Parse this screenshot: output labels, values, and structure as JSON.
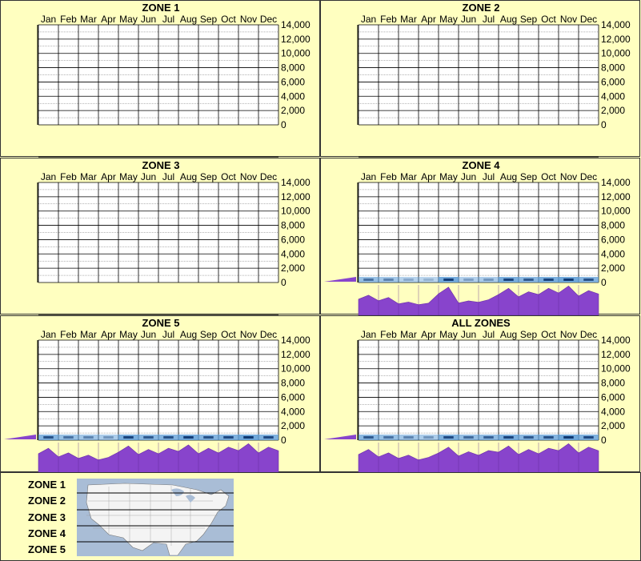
{
  "months": [
    "Jan",
    "Feb",
    "Mar",
    "Apr",
    "May",
    "Jun",
    "Jul",
    "Aug",
    "Sep",
    "Oct",
    "Nov",
    "Dec"
  ],
  "y_ticks": [
    "14,000",
    "12,000",
    "10,000",
    "8,000",
    "6,000",
    "4,000",
    "2,000",
    "0"
  ],
  "colors": {
    "background": "#ffffc0",
    "profile": "#8844cc",
    "map_water": "#a9bdd6"
  },
  "chart_data": [
    {
      "type": "heatmap",
      "title": "ZONE 1",
      "categories": [
        "Jan",
        "Feb",
        "Mar",
        "Apr",
        "May",
        "Jun",
        "Jul",
        "Aug",
        "Sep",
        "Oct",
        "Nov",
        "Dec"
      ],
      "ylim": [
        0,
        14000
      ],
      "has_data": false
    },
    {
      "type": "heatmap",
      "title": "ZONE 2",
      "categories": [
        "Jan",
        "Feb",
        "Mar",
        "Apr",
        "May",
        "Jun",
        "Jul",
        "Aug",
        "Sep",
        "Oct",
        "Nov",
        "Dec"
      ],
      "ylim": [
        0,
        14000
      ],
      "has_data": false
    },
    {
      "type": "heatmap",
      "title": "ZONE 3",
      "categories": [
        "Jan",
        "Feb",
        "Mar",
        "Apr",
        "May",
        "Jun",
        "Jul",
        "Aug",
        "Sep",
        "Oct",
        "Nov",
        "Dec"
      ],
      "ylim": [
        0,
        14000
      ],
      "has_data": false
    },
    {
      "type": "heatmap",
      "title": "ZONE 4",
      "categories": [
        "Jan",
        "Feb",
        "Mar",
        "Apr",
        "May",
        "Jun",
        "Jul",
        "Aug",
        "Sep",
        "Oct",
        "Nov",
        "Dec"
      ],
      "ylim": [
        0,
        14000
      ],
      "has_data": true,
      "monthly_relative": [
        0.55,
        0.45,
        0.25,
        0.2,
        0.9,
        0.3,
        0.35,
        0.85,
        0.7,
        0.85,
        0.95,
        0.75
      ]
    },
    {
      "type": "heatmap",
      "title": "ZONE 5",
      "categories": [
        "Jan",
        "Feb",
        "Mar",
        "Apr",
        "May",
        "Jun",
        "Jul",
        "Aug",
        "Sep",
        "Oct",
        "Nov",
        "Dec"
      ],
      "ylim": [
        0,
        14000
      ],
      "has_data": true,
      "monthly_relative": [
        0.75,
        0.55,
        0.45,
        0.35,
        0.85,
        0.7,
        0.75,
        0.9,
        0.75,
        0.8,
        0.95,
        0.8
      ]
    },
    {
      "type": "heatmap",
      "title": "ALL ZONES",
      "categories": [
        "Jan",
        "Feb",
        "Mar",
        "Apr",
        "May",
        "Jun",
        "Jul",
        "Aug",
        "Sep",
        "Oct",
        "Nov",
        "Dec"
      ],
      "ylim": [
        0,
        14000
      ],
      "has_data": true,
      "monthly_relative": [
        0.7,
        0.55,
        0.45,
        0.35,
        0.8,
        0.6,
        0.65,
        0.85,
        0.7,
        0.75,
        0.95,
        0.8
      ]
    }
  ],
  "legend": {
    "zones": [
      "ZONE 1",
      "ZONE 2",
      "ZONE 3",
      "ZONE 4",
      "ZONE 5"
    ]
  }
}
